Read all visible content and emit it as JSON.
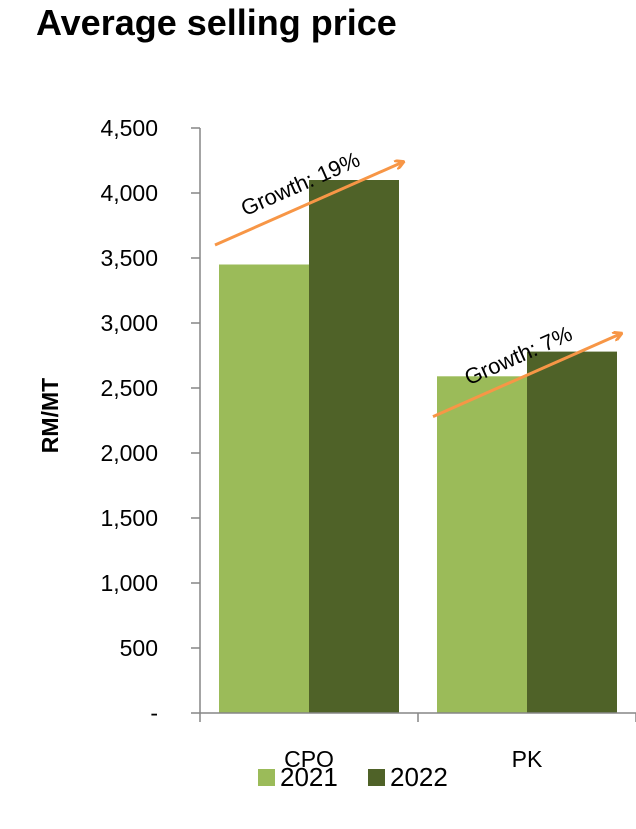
{
  "chart_data": {
    "type": "bar",
    "title": "Average selling price",
    "ylabel": "RM/MT",
    "xlabel": "",
    "categories": [
      "CPO",
      "PK"
    ],
    "series": [
      {
        "name": "2021",
        "values": [
          3450,
          2590
        ],
        "color": "#9bbb59"
      },
      {
        "name": "2022",
        "values": [
          4100,
          2780
        ],
        "color": "#4f6228"
      }
    ],
    "ylim": [
      0,
      4500
    ],
    "yticks": [
      0,
      500,
      1000,
      1500,
      2000,
      2500,
      3000,
      3500,
      4000,
      4500
    ],
    "ytick_labels": [
      "-",
      "500",
      "1,000",
      "1,500",
      "2,000",
      "2,500",
      "3,000",
      "3,500",
      "4,000",
      "4,500"
    ],
    "grid": false,
    "legend": "bottom",
    "annotations": [
      {
        "text": "Growth: 19%",
        "category": "CPO"
      },
      {
        "text": "Growth: 7%",
        "category": "PK"
      }
    ],
    "annotation_color": "#f79646"
  }
}
